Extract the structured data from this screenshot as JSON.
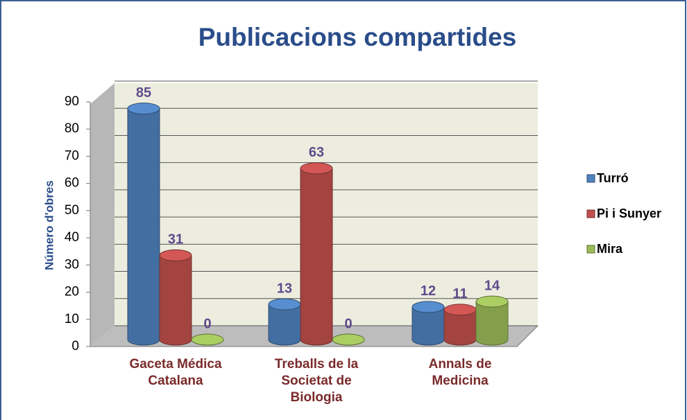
{
  "chart_data": {
    "type": "bar",
    "title": "Publicacions compartides",
    "ylabel": "Número d'obres",
    "categories": [
      "Gaceta Médica Catalana",
      "Treballs de la Societat de Biologia",
      "Annals de Medicina"
    ],
    "series": [
      {
        "name": "Turró",
        "color": "#4f81bd",
        "values": [
          85,
          13,
          12
        ]
      },
      {
        "name": "Pi i Sunyer",
        "color": "#c0504d",
        "values": [
          31,
          63,
          11
        ]
      },
      {
        "name": "Mira",
        "color": "#9bbb59",
        "values": [
          0,
          0,
          14
        ]
      }
    ],
    "ylim": [
      0,
      90
    ],
    "yticks": [
      0,
      10,
      20,
      30,
      40,
      50,
      60,
      70,
      80,
      90
    ],
    "grid": true,
    "legend": "right"
  }
}
